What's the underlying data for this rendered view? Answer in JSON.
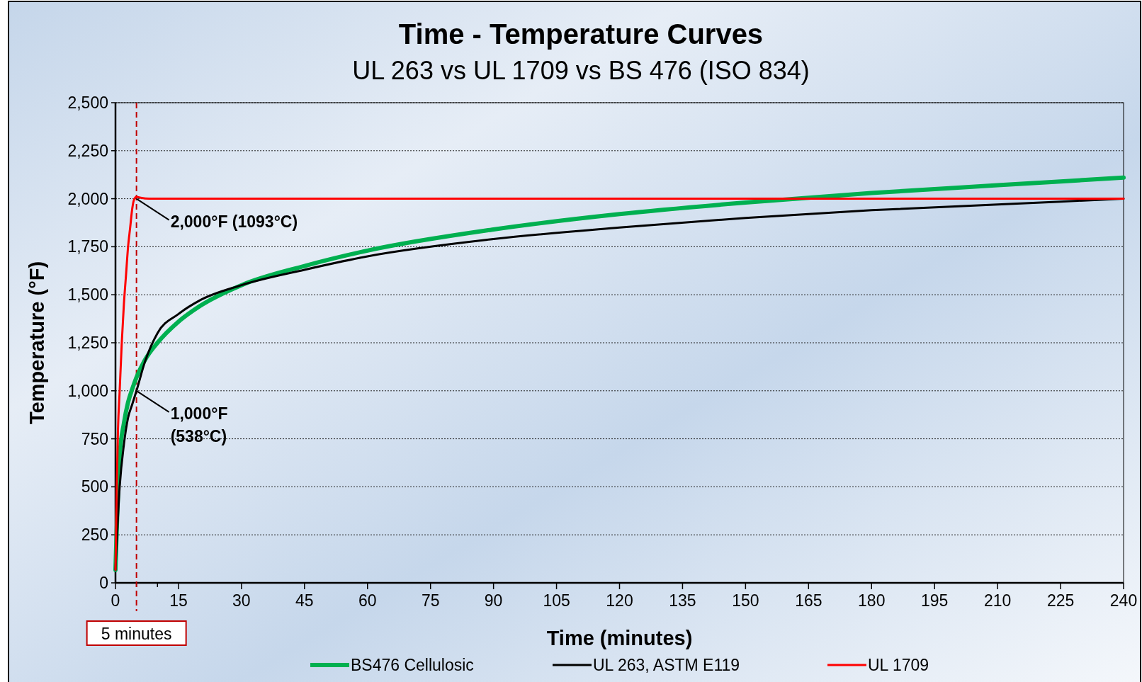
{
  "chart_data": {
    "type": "line",
    "title": "Time - Temperature Curves",
    "subtitle": "UL 263 vs UL 1709 vs BS 476 (ISO 834)",
    "xlabel": "Time (minutes)",
    "ylabel": "Temperature (°F)",
    "xlim": [
      0,
      240
    ],
    "xticks": [
      0,
      {
        "value": 5,
        "label": null
      },
      {
        "value": 10,
        "label": null
      },
      15,
      30,
      45,
      60,
      75,
      90,
      105,
      120,
      135,
      150,
      165,
      180,
      195,
      210,
      225,
      240
    ],
    "ylim": [
      0,
      2500
    ],
    "yticks": [
      {
        "value": 0,
        "label": "0"
      },
      {
        "value": 250,
        "label": "250"
      },
      {
        "value": 500,
        "label": "500"
      },
      {
        "value": 750,
        "label": "750"
      },
      {
        "value": 1000,
        "label": "1,000"
      },
      {
        "value": 1250,
        "label": "1,250"
      },
      {
        "value": 1500,
        "label": "1,500"
      },
      {
        "value": 1750,
        "label": "1,750"
      },
      {
        "value": 2000,
        "label": "2,000"
      },
      {
        "value": 2250,
        "label": "2,250"
      },
      {
        "value": 2500,
        "label": "2,500"
      }
    ],
    "grid": "y",
    "legend": "bottom",
    "line_style": "solid",
    "marker": "none",
    "series": [
      {
        "name": "BS476 Cellulosic",
        "color": "#00b050",
        "x": [
          0,
          1,
          2,
          3,
          4,
          5,
          7,
          10,
          15,
          20,
          30,
          45,
          60,
          90,
          120,
          150,
          180,
          210,
          240
        ],
        "values": [
          68,
          660,
          830,
          940,
          1010,
          1070,
          1160,
          1250,
          1360,
          1440,
          1550,
          1650,
          1730,
          1840,
          1920,
          1980,
          2030,
          2070,
          2110
        ]
      },
      {
        "name": "UL 263, ASTM E119",
        "color": "#000000",
        "x": [
          0,
          1,
          2,
          3,
          4,
          5,
          7,
          10,
          15,
          20,
          30,
          45,
          60,
          90,
          120,
          150,
          180,
          210,
          240
        ],
        "values": [
          68,
          500,
          720,
          860,
          930,
          1000,
          1150,
          1300,
          1400,
          1470,
          1550,
          1630,
          1700,
          1790,
          1850,
          1900,
          1940,
          1970,
          2000
        ]
      },
      {
        "name": "UL 1709",
        "color": "#ff0000",
        "x": [
          0,
          0.3,
          0.6,
          1,
          1.5,
          2,
          2.5,
          3,
          3.5,
          4,
          4.5,
          5,
          6,
          8,
          240
        ],
        "values": [
          68,
          500,
          800,
          1000,
          1250,
          1450,
          1600,
          1750,
          1850,
          1950,
          2000,
          2010,
          2005,
          2000,
          2000
        ]
      }
    ],
    "ref_lines": [
      {
        "axis": "x",
        "value": 5,
        "label": "5 minutes",
        "color": "#c00000",
        "line_style": "dashed"
      }
    ],
    "annotations": [
      {
        "text": "2,000°F (1093°C)",
        "x": 5,
        "y": 2000
      },
      {
        "text": "1,000°F\n(538°C)",
        "x": 5,
        "y": 1000
      }
    ]
  }
}
